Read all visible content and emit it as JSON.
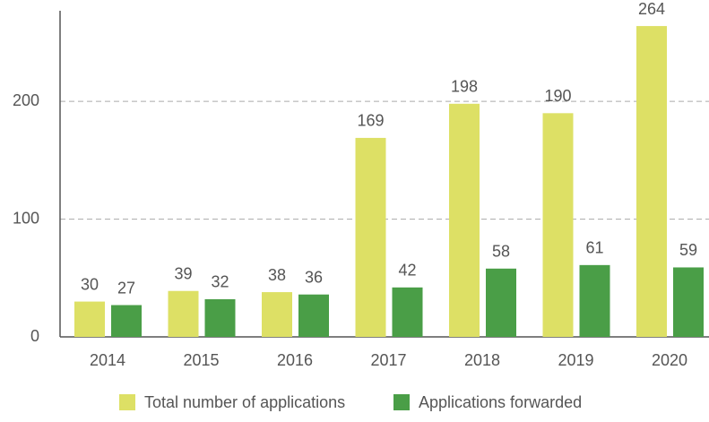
{
  "chart_data": {
    "type": "bar",
    "categories": [
      "2014",
      "2015",
      "2016",
      "2017",
      "2018",
      "2019",
      "2020"
    ],
    "series": [
      {
        "name": "Total number of applications",
        "color": "#dde065",
        "values": [
          30,
          39,
          38,
          169,
          198,
          190,
          264
        ]
      },
      {
        "name": "Applications forwarded",
        "color": "#4a9e47",
        "values": [
          27,
          32,
          36,
          42,
          58,
          61,
          59
        ]
      }
    ],
    "ylim": [
      0,
      277
    ],
    "yticks": [
      0,
      100,
      200
    ],
    "grid": true
  }
}
